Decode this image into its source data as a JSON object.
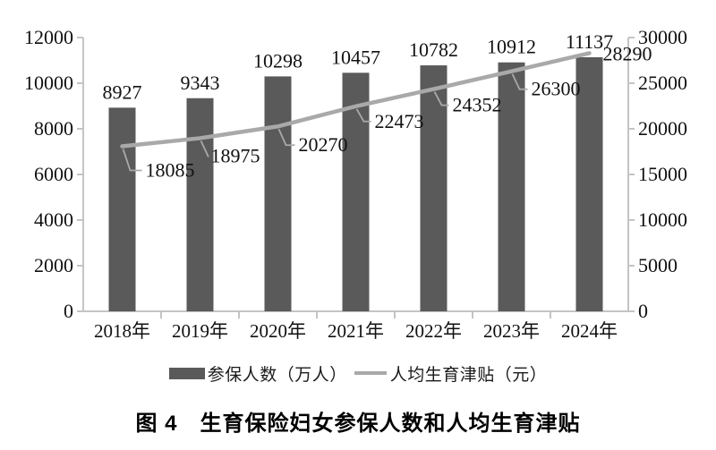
{
  "figure": {
    "caption": "图 4　生育保险妇女参保人数和人均生育津贴"
  },
  "legend": {
    "bar_label": "参保人数（万人）",
    "line_label": "人均生育津贴（元）"
  },
  "chart_data": {
    "type": "bar+line",
    "title": "图 4　生育保险妇女参保人数和人均生育津贴",
    "categories": [
      "2018年",
      "2019年",
      "2020年",
      "2021年",
      "2022年",
      "2023年",
      "2024年"
    ],
    "series": [
      {
        "name": "参保人数（万人）",
        "chart_type": "bar",
        "axis": "left",
        "color": "#5a5a5a",
        "values": [
          8927,
          9343,
          10298,
          10457,
          10782,
          10912,
          11137
        ]
      },
      {
        "name": "人均生育津贴（元）",
        "chart_type": "line",
        "axis": "right",
        "color": "#a9a9a9",
        "values": [
          18085,
          18975,
          20270,
          22473,
          24352,
          26300,
          28290
        ]
      }
    ],
    "axes": {
      "left": {
        "min": 0,
        "max": 12000,
        "step": 2000,
        "tick_labels": [
          "0",
          "2000",
          "4000",
          "6000",
          "8000",
          "10000",
          "12000"
        ]
      },
      "right": {
        "min": 0,
        "max": 30000,
        "step": 5000,
        "tick_labels": [
          "0",
          "5000",
          "10000",
          "15000",
          "20000",
          "25000",
          "30000"
        ]
      }
    },
    "grid": false,
    "legend_position": "bottom",
    "data_labels_visible": true,
    "colors": {
      "axis_line": "#c4c4c4",
      "leader_line": "#a9a9a9",
      "label_text": "#111111"
    }
  }
}
